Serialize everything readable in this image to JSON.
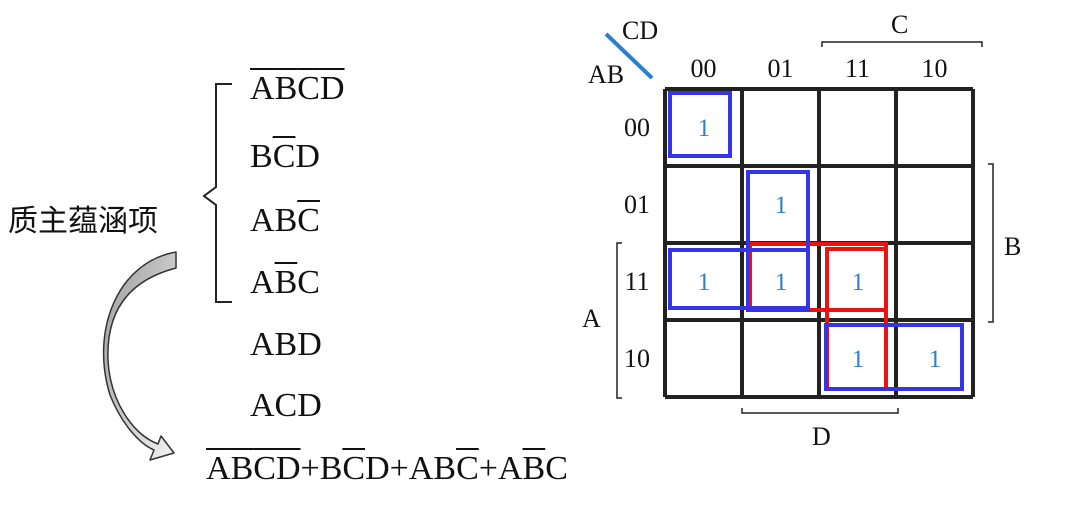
{
  "left": {
    "label": "质主蕴涵项",
    "prime_terms": [
      [
        {
          "t": "A",
          "bar": true
        },
        {
          "t": "B",
          "bar": true
        },
        {
          "t": "C",
          "bar": true
        },
        {
          "t": "D",
          "bar": true
        }
      ],
      [
        {
          "t": "B",
          "bar": false
        },
        {
          "t": "C",
          "bar": true
        },
        {
          "t": "D",
          "bar": false
        }
      ],
      [
        {
          "t": "A",
          "bar": false
        },
        {
          "t": "B",
          "bar": false
        },
        {
          "t": "C",
          "bar": true
        }
      ],
      [
        {
          "t": "A",
          "bar": false
        },
        {
          "t": "B",
          "bar": true
        },
        {
          "t": "C",
          "bar": false
        }
      ]
    ],
    "other_terms": [
      "ABD",
      "ACD"
    ],
    "result": [
      [
        {
          "t": "A",
          "bar": true
        },
        {
          "t": "B",
          "bar": true
        },
        {
          "t": "C",
          "bar": true
        },
        {
          "t": "D",
          "bar": true
        }
      ],
      [
        {
          "t": "B",
          "bar": false
        },
        {
          "t": "C",
          "bar": true
        },
        {
          "t": "D",
          "bar": false
        }
      ],
      [
        {
          "t": "A",
          "bar": false
        },
        {
          "t": "B",
          "bar": false
        },
        {
          "t": "C",
          "bar": true
        }
      ],
      [
        {
          "t": "A",
          "bar": false
        },
        {
          "t": "B",
          "bar": true
        },
        {
          "t": "C",
          "bar": false
        }
      ]
    ],
    "plus": "+"
  },
  "kmap": {
    "corner_top": "CD",
    "corner_left": "AB",
    "col_headers": [
      "00",
      "01",
      "11",
      "10"
    ],
    "row_headers": [
      "00",
      "01",
      "11",
      "10"
    ],
    "span_C": "C",
    "span_B": "B",
    "span_A": "A",
    "span_D": "D",
    "cell_value": "1",
    "ones": [
      [
        0,
        0
      ],
      [
        1,
        1
      ],
      [
        2,
        0
      ],
      [
        2,
        1
      ],
      [
        2,
        2
      ],
      [
        3,
        2
      ],
      [
        3,
        3
      ]
    ],
    "colors": {
      "blue": "#3535e6",
      "red": "#ee1111",
      "one_text": "#2a7fd0"
    }
  }
}
